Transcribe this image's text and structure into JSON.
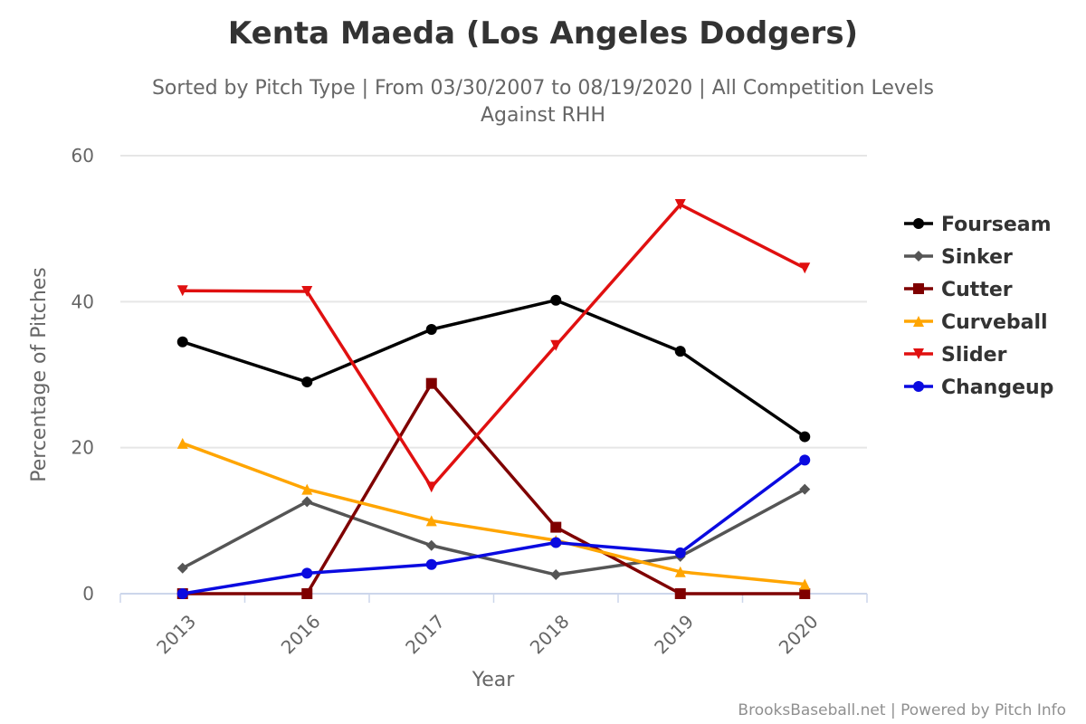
{
  "chart_data": {
    "type": "line",
    "title": "Kenta Maeda (Los Angeles Dodgers)",
    "subtitle": "Sorted by Pitch Type | From 03/30/2007 to 08/19/2020 | All Competition Levels",
    "subtitle2": "Against RHH",
    "xlabel": "Year",
    "ylabel": "Percentage of Pitches",
    "categories": [
      "2013",
      "2016",
      "2017",
      "2018",
      "2019",
      "2020"
    ],
    "ylim": [
      0,
      60
    ],
    "yticks": [
      0,
      20,
      40,
      60
    ],
    "grid": true,
    "legend_position": "right",
    "series": [
      {
        "name": "Fourseam",
        "color": "#000000",
        "marker": "circle",
        "values": [
          34.5,
          29.0,
          36.2,
          40.2,
          33.2,
          21.5
        ]
      },
      {
        "name": "Sinker",
        "color": "#555555",
        "marker": "diamond",
        "values": [
          3.5,
          12.6,
          6.6,
          2.6,
          5.1,
          14.3
        ]
      },
      {
        "name": "Cutter",
        "color": "#7f0000",
        "marker": "square",
        "values": [
          0,
          0,
          28.8,
          9.1,
          0,
          0
        ]
      },
      {
        "name": "Curveball",
        "color": "#ffa500",
        "marker": "triangle",
        "values": [
          20.6,
          14.3,
          10.0,
          7.3,
          3.0,
          1.3
        ]
      },
      {
        "name": "Slider",
        "color": "#e01010",
        "marker": "triangle-down",
        "values": [
          41.5,
          41.4,
          14.6,
          34.0,
          53.3,
          44.6
        ]
      },
      {
        "name": "Changeup",
        "color": "#0a0ae0",
        "marker": "circle",
        "values": [
          0,
          2.8,
          4.0,
          7.0,
          5.6,
          18.3
        ]
      }
    ]
  },
  "credits": "BrooksBaseball.net | Powered by Pitch Info"
}
